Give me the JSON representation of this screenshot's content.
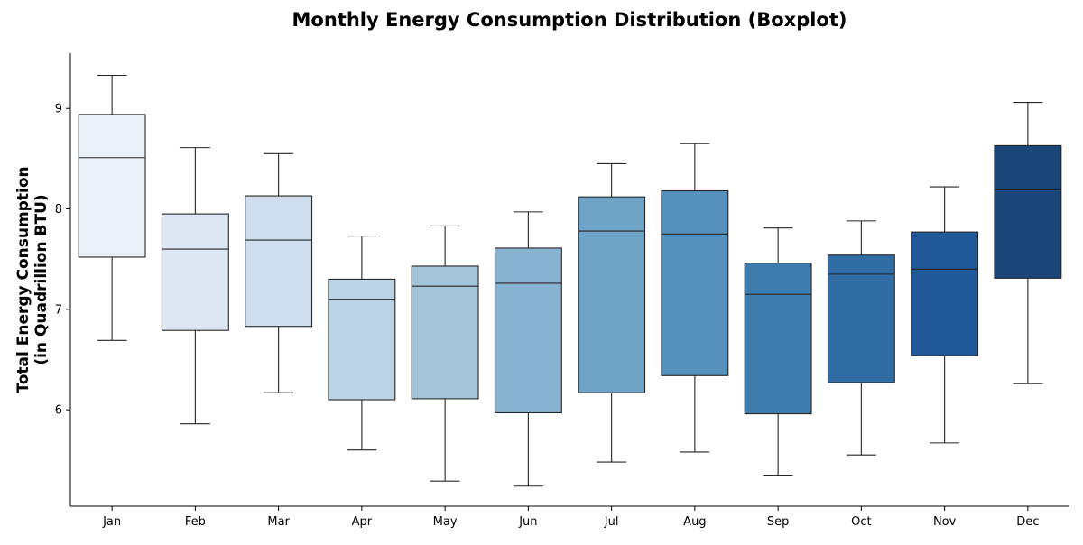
{
  "chart_data": {
    "type": "boxplot",
    "title": "Monthly Energy Consumption Distribution (Boxplot)",
    "ylabel_lines": [
      "Total Energy Consumption",
      "(in Quadrillion BTU)"
    ],
    "xlabel": "",
    "ylim": [
      5.04,
      9.55
    ],
    "yticks": [
      6,
      7,
      8,
      9
    ],
    "grid": false,
    "categories": [
      "Jan",
      "Feb",
      "Mar",
      "Apr",
      "May",
      "Jun",
      "Jul",
      "Aug",
      "Sep",
      "Oct",
      "Nov",
      "Dec"
    ],
    "boxes": [
      {
        "whisker_low": 6.69,
        "q1": 7.52,
        "median": 8.51,
        "q3": 8.94,
        "whisker_high": 9.33
      },
      {
        "whisker_low": 5.86,
        "q1": 6.79,
        "median": 7.6,
        "q3": 7.95,
        "whisker_high": 8.61
      },
      {
        "whisker_low": 6.17,
        "q1": 6.83,
        "median": 7.69,
        "q3": 8.13,
        "whisker_high": 8.55
      },
      {
        "whisker_low": 5.6,
        "q1": 6.1,
        "median": 7.1,
        "q3": 7.3,
        "whisker_high": 7.73
      },
      {
        "whisker_low": 5.29,
        "q1": 6.11,
        "median": 7.23,
        "q3": 7.43,
        "whisker_high": 7.83
      },
      {
        "whisker_low": 5.24,
        "q1": 5.97,
        "median": 7.26,
        "q3": 7.61,
        "whisker_high": 7.97
      },
      {
        "whisker_low": 5.48,
        "q1": 6.17,
        "median": 7.78,
        "q3": 8.12,
        "whisker_high": 8.45
      },
      {
        "whisker_low": 5.58,
        "q1": 6.34,
        "median": 7.75,
        "q3": 8.18,
        "whisker_high": 8.65
      },
      {
        "whisker_low": 5.35,
        "q1": 5.96,
        "median": 7.15,
        "q3": 7.46,
        "whisker_high": 7.81
      },
      {
        "whisker_low": 5.55,
        "q1": 6.27,
        "median": 7.35,
        "q3": 7.54,
        "whisker_high": 7.88
      },
      {
        "whisker_low": 5.67,
        "q1": 6.54,
        "median": 7.4,
        "q3": 7.77,
        "whisker_high": 8.22
      },
      {
        "whisker_low": 6.26,
        "q1": 7.31,
        "median": 8.19,
        "q3": 8.63,
        "whisker_high": 9.06
      }
    ],
    "colors": [
      "#eaf1f9",
      "#dce7f3",
      "#cfdeee",
      "#bbd3e4",
      "#a4c5d9",
      "#87b3d1",
      "#6fa4c7",
      "#5591bb",
      "#3f7cae",
      "#2f6da4",
      "#215998",
      "#1a4679"
    ],
    "line_color": "#262626",
    "axis_color": "#000000"
  }
}
